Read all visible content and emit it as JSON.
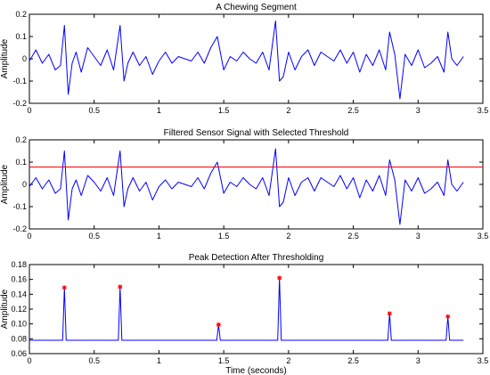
{
  "chart_data": [
    {
      "type": "line",
      "title": "A Chewing Segment",
      "xlabel": "",
      "ylabel": "Amplitude",
      "xlim": [
        0,
        3.5
      ],
      "ylim": [
        -0.2,
        0.2
      ],
      "xticks": [
        0,
        0.5,
        1,
        1.5,
        2,
        2.5,
        3,
        3.5
      ],
      "yticks": [
        -0.2,
        -0.1,
        0,
        0.1,
        0.2
      ],
      "grid": false,
      "colors": {
        "signal": "#0000ff"
      },
      "series": [
        {
          "x": [
            0,
            0.05,
            0.1,
            0.15,
            0.2,
            0.24,
            0.27,
            0.3,
            0.33,
            0.36,
            0.4,
            0.45,
            0.5,
            0.55,
            0.6,
            0.65,
            0.7,
            0.73,
            0.76,
            0.8,
            0.85,
            0.9,
            0.95,
            1.0,
            1.05,
            1.1,
            1.15,
            1.2,
            1.25,
            1.3,
            1.35,
            1.4,
            1.45,
            1.5,
            1.55,
            1.6,
            1.65,
            1.7,
            1.75,
            1.8,
            1.85,
            1.9,
            1.93,
            1.96,
            2.0,
            2.05,
            2.1,
            2.15,
            2.2,
            2.25,
            2.3,
            2.35,
            2.4,
            2.45,
            2.5,
            2.55,
            2.6,
            2.65,
            2.7,
            2.75,
            2.78,
            2.82,
            2.86,
            2.9,
            2.95,
            3.0,
            3.05,
            3.1,
            3.15,
            3.2,
            3.23,
            3.26,
            3.3,
            3.35
          ],
          "y": [
            -0.01,
            0.04,
            -0.02,
            0.02,
            -0.05,
            -0.03,
            0.15,
            -0.16,
            -0.02,
            0.03,
            -0.06,
            0.05,
            0.01,
            -0.03,
            0.04,
            -0.05,
            0.15,
            -0.1,
            -0.02,
            0.03,
            -0.03,
            0.01,
            -0.07,
            -0.01,
            0.03,
            -0.02,
            0.01,
            0.0,
            -0.01,
            0.03,
            -0.02,
            0.05,
            0.1,
            -0.05,
            0.01,
            -0.01,
            0.03,
            0.0,
            -0.02,
            0.03,
            -0.05,
            0.17,
            -0.1,
            -0.08,
            0.03,
            -0.05,
            0.01,
            0.04,
            -0.03,
            0.03,
            0.01,
            -0.01,
            0.04,
            -0.02,
            0.03,
            -0.06,
            0.02,
            -0.03,
            0.04,
            -0.05,
            0.12,
            0.02,
            -0.18,
            0.02,
            -0.03,
            0.04,
            -0.04,
            -0.02,
            0.01,
            -0.06,
            0.12,
            0.0,
            -0.03,
            0.01
          ]
        }
      ]
    },
    {
      "type": "line",
      "title": "Filtered Sensor Signal with Selected Threshold",
      "xlabel": "",
      "ylabel": "Amplitude",
      "xlim": [
        0,
        3.5
      ],
      "ylim": [
        -0.2,
        0.2
      ],
      "xticks": [
        0,
        0.5,
        1,
        1.5,
        2,
        2.5,
        3,
        3.5
      ],
      "yticks": [
        -0.2,
        -0.1,
        0,
        0.1,
        0.2
      ],
      "grid": false,
      "threshold": 0.078,
      "colors": {
        "signal": "#0000ff",
        "threshold": "#ff0000"
      },
      "series": [
        {
          "x": [
            0,
            0.05,
            0.1,
            0.15,
            0.2,
            0.24,
            0.27,
            0.3,
            0.33,
            0.36,
            0.4,
            0.45,
            0.5,
            0.55,
            0.6,
            0.65,
            0.7,
            0.73,
            0.76,
            0.8,
            0.85,
            0.9,
            0.95,
            1.0,
            1.05,
            1.1,
            1.15,
            1.2,
            1.25,
            1.3,
            1.35,
            1.4,
            1.45,
            1.5,
            1.55,
            1.6,
            1.65,
            1.7,
            1.75,
            1.8,
            1.85,
            1.9,
            1.93,
            1.96,
            2.0,
            2.05,
            2.1,
            2.15,
            2.2,
            2.25,
            2.3,
            2.35,
            2.4,
            2.45,
            2.5,
            2.55,
            2.6,
            2.65,
            2.7,
            2.75,
            2.78,
            2.82,
            2.86,
            2.9,
            2.95,
            3.0,
            3.05,
            3.1,
            3.15,
            3.2,
            3.23,
            3.26,
            3.3,
            3.35
          ],
          "y": [
            -0.01,
            0.03,
            -0.02,
            0.02,
            -0.04,
            -0.02,
            0.15,
            -0.16,
            -0.02,
            0.02,
            -0.05,
            0.04,
            0.01,
            -0.03,
            0.03,
            -0.05,
            0.15,
            -0.1,
            -0.02,
            0.03,
            -0.03,
            0.01,
            -0.07,
            -0.01,
            0.02,
            -0.02,
            0.01,
            0.0,
            -0.01,
            0.03,
            -0.02,
            0.05,
            0.1,
            -0.04,
            0.01,
            -0.01,
            0.03,
            0.0,
            -0.02,
            0.03,
            -0.05,
            0.16,
            -0.1,
            -0.08,
            0.03,
            -0.05,
            0.01,
            0.03,
            -0.03,
            0.03,
            0.01,
            -0.01,
            0.04,
            -0.02,
            0.03,
            -0.06,
            0.02,
            -0.03,
            0.04,
            -0.05,
            0.11,
            0.02,
            -0.18,
            0.02,
            -0.03,
            0.03,
            -0.04,
            -0.02,
            0.01,
            -0.05,
            0.11,
            0.0,
            -0.03,
            0.01
          ]
        }
      ]
    },
    {
      "type": "line",
      "title": "Peak Detection After Thresholding",
      "xlabel": "Time (seconds)",
      "ylabel": "Amplitude",
      "xlim": [
        0,
        3.5
      ],
      "ylim": [
        0.06,
        0.18
      ],
      "xticks": [
        0,
        0.5,
        1,
        1.5,
        2,
        2.5,
        3,
        3.5
      ],
      "yticks": [
        0.06,
        0.08,
        0.1,
        0.12,
        0.14,
        0.16,
        0.18
      ],
      "grid": false,
      "baseline": 0.078,
      "x_end": 3.35,
      "colors": {
        "signal": "#0000ff",
        "peak_marker": "#ff0000"
      },
      "peaks": [
        {
          "x": 0.27,
          "y": 0.149
        },
        {
          "x": 0.7,
          "y": 0.15
        },
        {
          "x": 1.46,
          "y": 0.099
        },
        {
          "x": 1.93,
          "y": 0.162
        },
        {
          "x": 2.78,
          "y": 0.114
        },
        {
          "x": 3.23,
          "y": 0.11
        }
      ]
    }
  ]
}
